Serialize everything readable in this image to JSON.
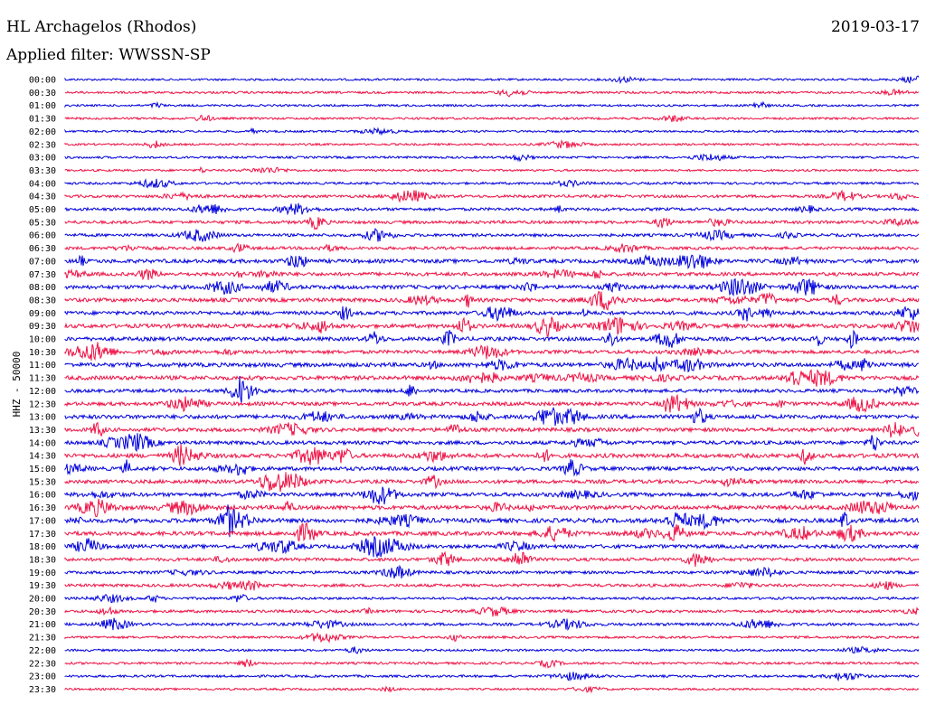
{
  "header": {
    "station": "HL Archagelos (Rhodos)",
    "date": "2019-03-17",
    "filter": "Applied filter: WWSSN-SP"
  },
  "channel_label": "HHZ - 50000",
  "colors": {
    "even_trace": "#0000dd",
    "odd_trace": "#ee1144",
    "text": "#000000"
  },
  "time_labels": [
    "00:00",
    "00:30",
    "01:00",
    "01:30",
    "02:00",
    "02:30",
    "03:00",
    "03:30",
    "04:00",
    "04:30",
    "05:00",
    "05:30",
    "06:00",
    "06:30",
    "07:00",
    "07:30",
    "08:00",
    "08:30",
    "09:00",
    "09:30",
    "10:00",
    "10:30",
    "11:00",
    "11:30",
    "12:00",
    "12:30",
    "13:00",
    "13:30",
    "14:00",
    "14:30",
    "15:00",
    "15:30",
    "16:00",
    "16:30",
    "17:00",
    "17:30",
    "18:00",
    "18:30",
    "19:00",
    "19:30",
    "20:00",
    "20:30",
    "21:00",
    "21:30",
    "22:00",
    "22:30",
    "23:00",
    "23:30"
  ],
  "activity": [
    0.2,
    0.25,
    0.2,
    0.25,
    0.2,
    0.2,
    0.25,
    0.2,
    0.3,
    0.45,
    0.5,
    0.55,
    0.5,
    0.5,
    0.8,
    0.7,
    0.8,
    0.8,
    0.75,
    0.85,
    0.8,
    0.7,
    0.9,
    0.9,
    0.65,
    0.75,
    0.85,
    0.8,
    0.75,
    0.9,
    0.8,
    0.75,
    0.8,
    0.9,
    0.95,
    0.9,
    0.75,
    0.6,
    0.5,
    0.5,
    0.35,
    0.45,
    0.45,
    0.3,
    0.25,
    0.3,
    0.3,
    0.2
  ]
}
